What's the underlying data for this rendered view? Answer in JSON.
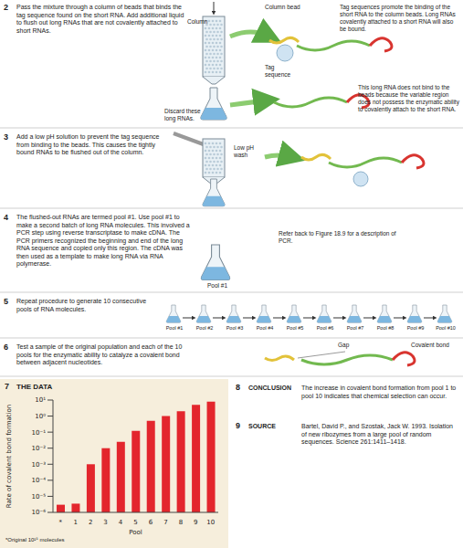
{
  "figure": {
    "step2": {
      "number": "2",
      "text": "Pass the mixture through a column of beads that binds the tag sequence found on the short RNA. Add additional liquid to flush out long RNAs that are not covalently attached to short RNAs.",
      "column": "Column",
      "bead": "Column bead",
      "tag": "Tag sequence",
      "bound_note": "Tag sequences promote the binding of the short RNA to the column beads. Long RNAs covalently attached to a short RNA will also be bound.",
      "discard": "Discard these long RNAs.",
      "unbound_note": "This long RNA does not bind to the beads because the variable region does not possess the enzymatic ability to covalently attach to the short RNA."
    },
    "step3": {
      "number": "3",
      "text": "Add a low pH solution to prevent the tag sequence from binding to the beads. This causes the tightly bound RNAs to be flushed out of the column.",
      "wash": "Low pH wash"
    },
    "step4": {
      "number": "4",
      "text": "The flushed-out RNAs are termed pool #1. Use pool #1 to make a second batch of long RNA molecules. This involved a PCR step using reverse transcriptase to make cDNA. The PCR primers recognized the beginning and end of the long RNA sequence and copied only this region. The cDNA was then used as a template to make long RNA via RNA polymerase.",
      "pool": "Pool #1",
      "note": "Refer back to Figure 18.9 for a description of PCR."
    },
    "step5": {
      "number": "5",
      "text": "Repeat procedure to generate 10 consecutive pools of RNA molecules.",
      "pools": [
        "Pool #1",
        "Pool #2",
        "Pool #3",
        "Pool #4",
        "Pool #5",
        "Pool #6",
        "Pool #7",
        "Pool #8",
        "Pool #9",
        "Pool #10"
      ]
    },
    "step6": {
      "number": "6",
      "text": "Test a sample of the original population and each of the 10 pools for the enzymatic ability to catalyze a covalent bond between adjacent nucleotides.",
      "gap": "Gap",
      "bond": "Covalent bond"
    },
    "data_panel": {
      "number": "7"
    },
    "conclusion": {
      "number": "8",
      "heading": "CONCLUSION",
      "text": "The increase in covalent bond formation from pool 1 to pool 10 indicates that chemical selection can occur."
    },
    "source": {
      "number": "9",
      "heading": "SOURCE",
      "text": "Bartel, David P., and Szostak, Jack W. 1993. Isolation of new ribozymes from a large pool of random sequences. Science 261:1411–1418."
    }
  },
  "chart_data": {
    "type": "bar",
    "title": "THE DATA",
    "categories": [
      "*",
      "1",
      "2",
      "3",
      "4",
      "5",
      "6",
      "7",
      "8",
      "9",
      "10"
    ],
    "values": [
      3e-06,
      3.5e-06,
      0.001,
      0.01,
      0.025,
      0.12,
      0.5,
      1,
      2,
      5,
      8
    ],
    "color": "#e3262d",
    "x_label": "Pool",
    "y_label": "Rate of covalent bond formation",
    "log": "y",
    "grid": false,
    "ylim": [
      1e-06,
      10
    ],
    "yticks": [
      {
        "value": 1e-06,
        "label": "10⁻⁶"
      },
      {
        "value": 1e-05,
        "label": "10⁻⁵"
      },
      {
        "value": 0.0001,
        "label": "10⁻⁴"
      },
      {
        "value": 0.001,
        "label": "10⁻³"
      },
      {
        "value": 0.01,
        "label": "10⁻²"
      },
      {
        "value": 0.1,
        "label": "10⁻¹"
      },
      {
        "value": 1,
        "label": "10⁰"
      },
      {
        "value": 10,
        "label": "10¹"
      }
    ],
    "annotations": [
      "*Original 10¹⁵ molecules"
    ]
  }
}
